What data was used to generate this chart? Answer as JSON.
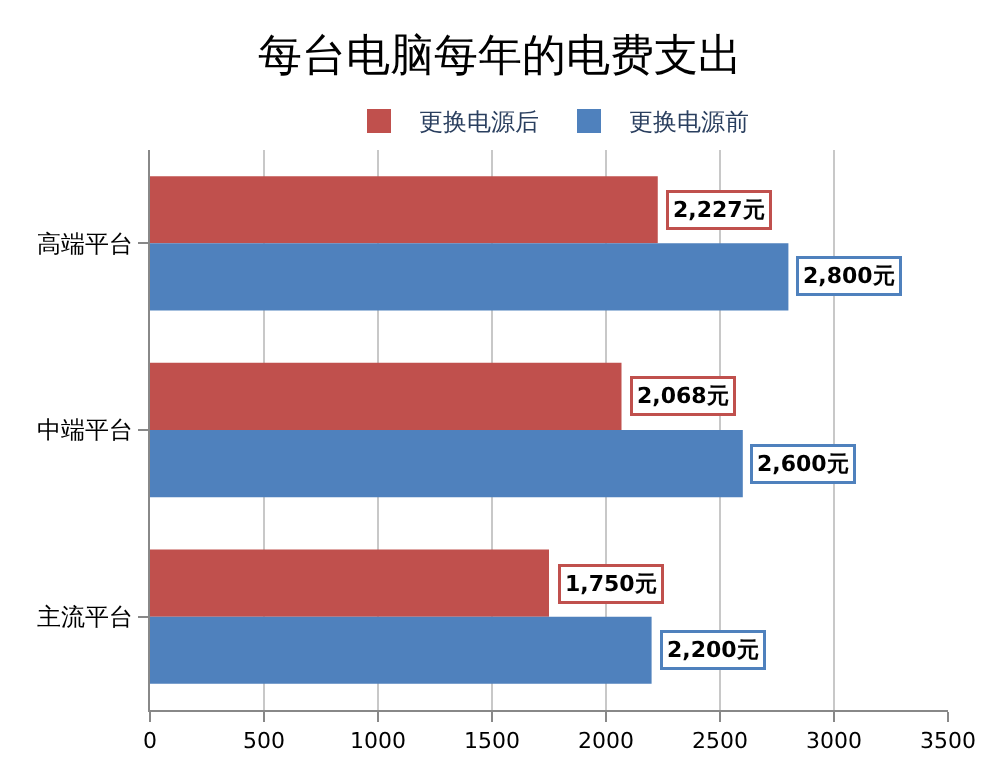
{
  "chart_data": {
    "type": "bar",
    "orientation": "horizontal",
    "title": "每台电脑每年的电费支出",
    "categories": [
      "高端平台",
      "中端平台",
      "主流平台"
    ],
    "series": [
      {
        "name": "更换电源后",
        "color": "#c0504d",
        "values": [
          2227,
          2068,
          1750
        ],
        "value_labels": [
          "2,227元",
          "2,068元",
          "1,750元"
        ]
      },
      {
        "name": "更换电源前",
        "color": "#4f81bd",
        "values": [
          2800,
          2600,
          2200
        ],
        "value_labels": [
          "2,800元",
          "2,600元",
          "2,200元"
        ]
      }
    ],
    "xlim": [
      0,
      3500
    ],
    "xticks": [
      0,
      500,
      1000,
      1500,
      2000,
      2500,
      3000,
      3500
    ],
    "grid": "x",
    "legend": "top"
  }
}
